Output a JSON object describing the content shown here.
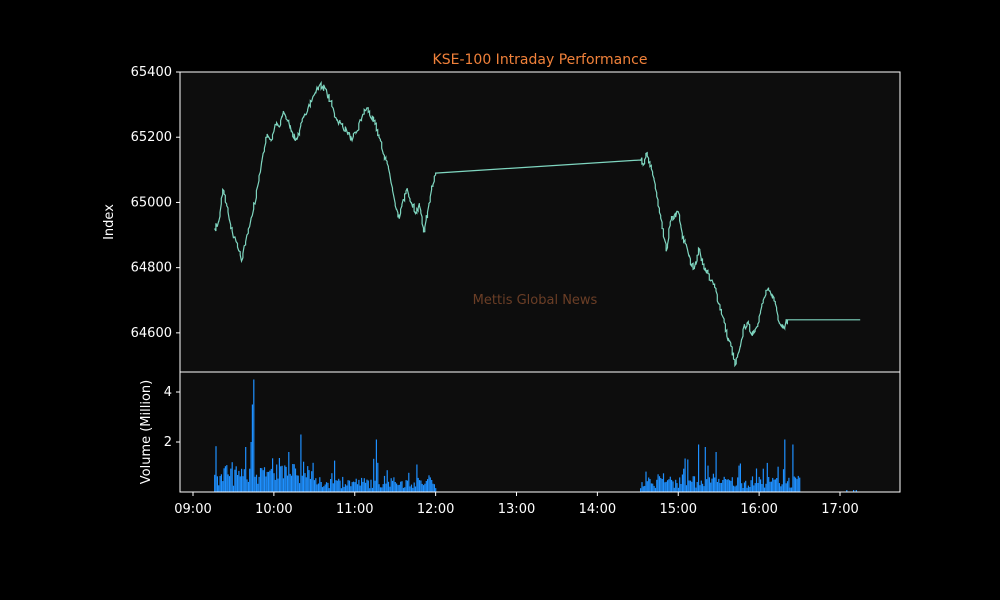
{
  "chart_data": {
    "type": "line",
    "title": "KSE-100 Intraday Performance",
    "watermark": "Mettis Global News",
    "x_ticks": [
      "09:00",
      "10:00",
      "11:00",
      "12:00",
      "13:00",
      "14:00",
      "15:00",
      "16:00",
      "17:00"
    ],
    "price": {
      "ylabel": "Index",
      "ylim": [
        64480,
        65400
      ],
      "y_ticks": [
        64600,
        64800,
        65000,
        65200,
        65400
      ],
      "series": {
        "values": [
          [
            "09:16",
            64920
          ],
          [
            "09:19",
            64940
          ],
          [
            "09:22",
            65040
          ],
          [
            "09:25",
            64990
          ],
          [
            "09:28",
            64920
          ],
          [
            "09:32",
            64880
          ],
          [
            "09:36",
            64820
          ],
          [
            "09:40",
            64900
          ],
          [
            "09:44",
            64960
          ],
          [
            "09:48",
            65050
          ],
          [
            "09:52",
            65150
          ],
          [
            "09:55",
            65210
          ],
          [
            "09:58",
            65190
          ],
          [
            "10:01",
            65240
          ],
          [
            "10:04",
            65230
          ],
          [
            "10:07",
            65280
          ],
          [
            "10:10",
            65250
          ],
          [
            "10:13",
            65220
          ],
          [
            "10:16",
            65190
          ],
          [
            "10:19",
            65220
          ],
          [
            "10:22",
            65260
          ],
          [
            "10:26",
            65300
          ],
          [
            "10:30",
            65330
          ],
          [
            "10:34",
            65360
          ],
          [
            "10:38",
            65350
          ],
          [
            "10:42",
            65310
          ],
          [
            "10:46",
            65260
          ],
          [
            "10:50",
            65240
          ],
          [
            "10:54",
            65220
          ],
          [
            "10:58",
            65190
          ],
          [
            "11:02",
            65220
          ],
          [
            "11:06",
            65270
          ],
          [
            "11:09",
            65290
          ],
          [
            "11:12",
            65260
          ],
          [
            "11:15",
            65240
          ],
          [
            "11:18",
            65200
          ],
          [
            "11:21",
            65150
          ],
          [
            "11:24",
            65120
          ],
          [
            "11:27",
            65060
          ],
          [
            "11:30",
            64990
          ],
          [
            "11:33",
            64950
          ],
          [
            "11:36",
            65010
          ],
          [
            "11:39",
            65040
          ],
          [
            "11:42",
            65000
          ],
          [
            "11:45",
            64970
          ],
          [
            "11:48",
            64990
          ],
          [
            "11:51",
            64910
          ],
          [
            "11:54",
            64970
          ],
          [
            "11:57",
            65050
          ],
          [
            "12:00",
            65090
          ],
          [
            "14:32",
            65130
          ],
          [
            "14:34",
            65120
          ],
          [
            "14:36",
            65150
          ],
          [
            "14:39",
            65110
          ],
          [
            "14:42",
            65070
          ],
          [
            "14:45",
            64990
          ],
          [
            "14:48",
            64920
          ],
          [
            "14:51",
            64850
          ],
          [
            "14:54",
            64940
          ],
          [
            "14:57",
            64960
          ],
          [
            "15:00",
            64970
          ],
          [
            "15:03",
            64890
          ],
          [
            "15:06",
            64870
          ],
          [
            "15:09",
            64810
          ],
          [
            "15:12",
            64800
          ],
          [
            "15:15",
            64860
          ],
          [
            "15:18",
            64810
          ],
          [
            "15:21",
            64790
          ],
          [
            "15:24",
            64760
          ],
          [
            "15:27",
            64740
          ],
          [
            "15:30",
            64690
          ],
          [
            "15:33",
            64650
          ],
          [
            "15:36",
            64590
          ],
          [
            "15:39",
            64560
          ],
          [
            "15:42",
            64500
          ],
          [
            "15:45",
            64540
          ],
          [
            "15:48",
            64610
          ],
          [
            "15:51",
            64630
          ],
          [
            "15:54",
            64600
          ],
          [
            "15:57",
            64610
          ],
          [
            "16:00",
            64650
          ],
          [
            "16:03",
            64700
          ],
          [
            "16:06",
            64730
          ],
          [
            "16:09",
            64720
          ],
          [
            "16:12",
            64690
          ],
          [
            "16:15",
            64630
          ],
          [
            "16:18",
            64620
          ],
          [
            "16:21",
            64640
          ],
          [
            "17:15",
            64640
          ]
        ]
      }
    },
    "volume": {
      "ylabel": "Volume (Million)",
      "ylim": [
        0,
        4.8
      ],
      "y_ticks": [
        2,
        4
      ]
    }
  },
  "colors": {
    "background": "#000000",
    "plot_bg": "#0d0d0d",
    "line": "#7fd6c0",
    "bars": "#1e90ff",
    "title": "#f0813a",
    "watermark": "#6b3e26",
    "text": "#ffffff"
  }
}
